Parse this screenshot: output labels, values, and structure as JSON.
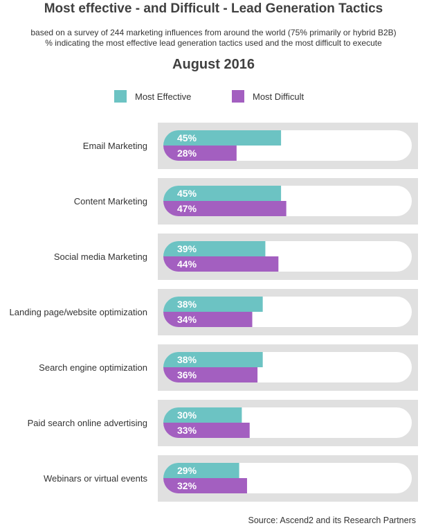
{
  "title": "Most effective - and Difficult - Lead Generation Tactics",
  "subtitle_line1": "based on a survey of 244 marketing influences from around the world (75% primarily or hybrid B2B)",
  "subtitle_line2": "% indicating the most effective lead generation tactics used and the most difficult to execute",
  "period": "August 2016",
  "source": "Source: Ascend2 and its Research Partners",
  "colors": {
    "most_effective": "#6cc3c3",
    "most_difficult": "#a35fc0",
    "panel": "#e0e0e0",
    "track": "#ffffff"
  },
  "legend": [
    {
      "label": "Most Effective",
      "color": "#6cc3c3"
    },
    {
      "label": "Most Difficult",
      "color": "#a35fc0"
    }
  ],
  "chart_data": {
    "type": "bar",
    "orientation": "horizontal",
    "categories": [
      "Email Marketing",
      "Content Marketing",
      "Social media Marketing",
      "Landing page/website optimization",
      "Search engine optimization",
      "Paid search online advertising",
      "Webinars or virtual events"
    ],
    "series": [
      {
        "name": "Most Effective",
        "values": [
          45,
          45,
          39,
          38,
          38,
          30,
          29
        ],
        "labels": [
          "45%",
          "45%",
          "39%",
          "38%",
          "38%",
          "30%",
          "29%"
        ]
      },
      {
        "name": "Most Difficult",
        "values": [
          28,
          47,
          44,
          34,
          36,
          33,
          32
        ],
        "labels": [
          "28%",
          "47%",
          "44%",
          "34%",
          "36%",
          "33%",
          "32%"
        ]
      }
    ],
    "legend_position": "top",
    "grid": false
  }
}
